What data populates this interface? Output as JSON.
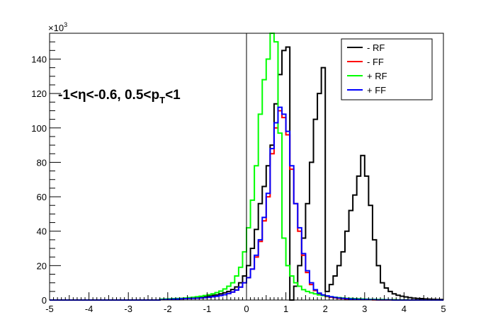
{
  "chart_data": {
    "type": "line",
    "title": "",
    "annotation": {
      "label": "-1<η<-0.6, 0.5<p",
      "sub": "T",
      "suffix": "<1"
    },
    "xlabel": "",
    "ylabel": "",
    "y_exponent_label": "×10",
    "y_exponent_power": "3",
    "xlim": [
      -5,
      5
    ],
    "ylim": [
      0,
      155
    ],
    "x_ticks": [
      -5,
      -4,
      -3,
      -2,
      -1,
      0,
      1,
      2,
      3,
      4,
      5
    ],
    "y_ticks": [
      0,
      20,
      40,
      60,
      80,
      100,
      120,
      140
    ],
    "legend_position": "top-right",
    "step": 0.1,
    "x_bin_edges_start": -5.0,
    "series": [
      {
        "name": "- RF",
        "color": "#000000",
        "values": [
          0,
          0,
          0,
          0,
          0,
          0,
          0,
          0,
          0,
          0,
          0,
          0,
          0,
          0,
          0,
          0,
          0,
          0,
          0,
          0,
          0,
          0,
          0,
          0,
          0,
          0,
          0,
          0,
          0.4,
          0.5,
          0.6,
          0.7,
          0.8,
          0.9,
          1.0,
          1.1,
          1.3,
          1.5,
          1.7,
          2.0,
          2.3,
          2.7,
          3.0,
          3.6,
          4.2,
          5.0,
          6.1,
          7.6,
          10,
          14,
          20,
          30,
          41,
          56,
          66,
          78,
          90,
          114,
          131,
          145,
          147,
          0,
          8,
          20,
          36,
          56,
          80,
          105,
          120,
          135,
          5,
          9,
          14,
          20,
          28,
          40,
          52,
          61,
          72,
          84,
          72,
          55,
          35,
          20,
          10,
          7,
          5,
          3.6,
          2.8,
          2.2,
          1.8,
          1.4,
          1.1,
          0.9,
          0.8,
          0.6,
          0.5,
          0.4,
          0.3,
          0.3
        ]
      },
      {
        "name": "- FF",
        "color": "#ff0000",
        "values": [
          0,
          0,
          0,
          0,
          0,
          0,
          0,
          0,
          0,
          0,
          0,
          0,
          0,
          0,
          0,
          0,
          0,
          0,
          0,
          0,
          0,
          0,
          0,
          0,
          0,
          0,
          0,
          0,
          0.2,
          0.3,
          0.4,
          0.5,
          0.6,
          0.7,
          0.8,
          0.9,
          1.0,
          1.1,
          1.2,
          1.4,
          1.6,
          1.9,
          2.2,
          2.6,
          3.1,
          3.8,
          4.6,
          5.8,
          7.5,
          10,
          13,
          18,
          25,
          34,
          46,
          60,
          85,
          100,
          110,
          106,
          96,
          76,
          56,
          40,
          26,
          16,
          9,
          5.5,
          3.6,
          2.6,
          2.0,
          1.6,
          1.3,
          1.0,
          0.8,
          0.6,
          0.5,
          0.4,
          0.3,
          0.3,
          0.2,
          0.2,
          0.1,
          0.1,
          0.1,
          0.1,
          0.1,
          0,
          0,
          0,
          0,
          0,
          0,
          0,
          0,
          0,
          0,
          0,
          0,
          0
        ]
      },
      {
        "name": "+ RF",
        "color": "#00ff00",
        "values": [
          0,
          0,
          0,
          0,
          0,
          0,
          0,
          0,
          0,
          0,
          0,
          0,
          0,
          0,
          0,
          0,
          0,
          0,
          0,
          0,
          0,
          0,
          0,
          0,
          0,
          0,
          0,
          0,
          0.5,
          0.6,
          0.7,
          0.8,
          0.9,
          1.0,
          1.2,
          1.4,
          1.6,
          1.9,
          2.2,
          2.6,
          3.1,
          3.6,
          4.3,
          5.2,
          6.4,
          8.0,
          10,
          14,
          19,
          28,
          42,
          58,
          78,
          108,
          128,
          140,
          155,
          150,
          97,
          36,
          20,
          14,
          10,
          8,
          6,
          5,
          4.2,
          3.6,
          3.0,
          2.6,
          2.2,
          1.9,
          1.6,
          1.4,
          1.2,
          1.0,
          0.9,
          0.8,
          0.7,
          0.6,
          0.5,
          0.4,
          0.4,
          0.3,
          0.3,
          0.2,
          0.2,
          0.2,
          0.1,
          0.1,
          0.1,
          0,
          0,
          0,
          0,
          0,
          0,
          0,
          0,
          0
        ]
      },
      {
        "name": "+ FF",
        "color": "#0000ff",
        "values": [
          0,
          0,
          0,
          0,
          0,
          0,
          0,
          0,
          0,
          0,
          0,
          0,
          0,
          0,
          0,
          0,
          0,
          0,
          0,
          0,
          0,
          0,
          0,
          0,
          0,
          0,
          0,
          0,
          0.2,
          0.3,
          0.4,
          0.5,
          0.6,
          0.7,
          0.8,
          0.9,
          1.0,
          1.1,
          1.2,
          1.4,
          1.6,
          1.9,
          2.2,
          2.6,
          3.1,
          3.8,
          4.6,
          5.8,
          7.5,
          10,
          13,
          18,
          26,
          35,
          48,
          62,
          88,
          103,
          112,
          108,
          98,
          78,
          56,
          42,
          27,
          17,
          10,
          6,
          4,
          3,
          2.4,
          1.9,
          1.5,
          1.2,
          1.0,
          0.8,
          0.6,
          0.5,
          0.4,
          0.3,
          0.3,
          0.2,
          0.2,
          0.1,
          0.1,
          0.1,
          0.1,
          0,
          0,
          0,
          0,
          0,
          0,
          0,
          0,
          0,
          0,
          0,
          0,
          0
        ]
      }
    ]
  }
}
